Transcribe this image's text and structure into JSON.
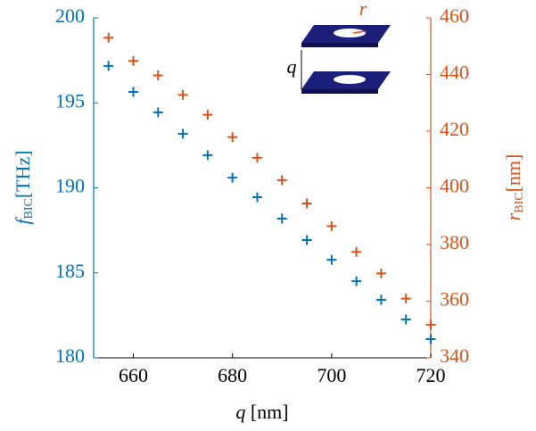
{
  "chart_data": {
    "type": "scatter",
    "x": [
      655,
      660,
      665,
      670,
      675,
      680,
      685,
      690,
      695,
      700,
      705,
      710,
      715,
      720
    ],
    "series": [
      {
        "color": "#0072BD",
        "values": [
          197.17,
          195.64,
          194.44,
          193.18,
          191.92,
          190.6,
          189.45,
          188.19,
          186.93,
          185.77,
          184.51,
          183.41,
          182.26,
          181.1
        ]
      },
      {
        "color": "#D95319",
        "axis": "y2",
        "values": [
          453.0,
          444.8,
          439.7,
          432.8,
          425.8,
          417.9,
          410.6,
          402.7,
          394.5,
          386.5,
          377.4,
          369.8,
          360.9,
          351.7
        ]
      }
    ],
    "xlim": [
      652,
      720
    ],
    "xticks": [
      660,
      680,
      700,
      720
    ],
    "ylim": [
      180,
      200
    ],
    "yticks": [
      180,
      185,
      190,
      195,
      200
    ],
    "y2lim": [
      340,
      460
    ],
    "y2ticks": [
      340,
      360,
      380,
      400,
      420,
      440,
      460
    ],
    "xlabel": {
      "symbol": "q",
      "unit": "[nm]"
    },
    "ylabel": {
      "symbol": "f",
      "subscript": "BIC",
      "unit": "[THz]"
    },
    "y2label": {
      "symbol": "r",
      "subscript": "BIC",
      "unit": "[nm]"
    },
    "inset": {
      "radius_label": "r",
      "gap_label": "q"
    }
  }
}
